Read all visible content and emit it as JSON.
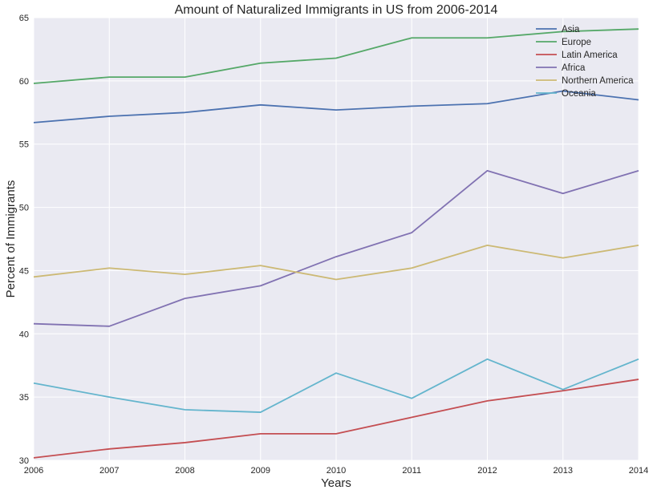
{
  "chart_data": {
    "type": "line",
    "title": "Amount of Naturalized Immigrants in US from 2006-2014",
    "xlabel": "Years",
    "ylabel": "Percent of Immigrants",
    "x": [
      2006,
      2007,
      2008,
      2009,
      2010,
      2011,
      2012,
      2013,
      2014
    ],
    "x_tick_labels": [
      "2006",
      "2007",
      "2008",
      "2009",
      "2010",
      "2011",
      "2012",
      "2013",
      "2014"
    ],
    "xlim": [
      2006,
      2014
    ],
    "ylim": [
      30,
      65
    ],
    "y_ticks": [
      30,
      35,
      40,
      45,
      50,
      55,
      60,
      65
    ],
    "y_tick_labels": [
      "30",
      "35",
      "40",
      "45",
      "50",
      "55",
      "60",
      "65"
    ],
    "grid": true,
    "legend_position": "top-right",
    "plot_background": "#EAEAF2",
    "grid_color": "#FFFFFF",
    "series": [
      {
        "name": "Asia",
        "color": "#4C72B0",
        "values": [
          56.7,
          57.2,
          57.5,
          58.1,
          57.7,
          58.0,
          58.2,
          59.2,
          58.5
        ]
      },
      {
        "name": "Europe",
        "color": "#55A868",
        "values": [
          59.8,
          60.3,
          60.3,
          61.4,
          61.8,
          63.4,
          63.4,
          63.9,
          64.1
        ]
      },
      {
        "name": "Latin America",
        "color": "#C44E52",
        "values": [
          30.2,
          30.9,
          31.4,
          32.1,
          32.1,
          33.4,
          34.7,
          35.5,
          36.4
        ]
      },
      {
        "name": "Africa",
        "color": "#8172B2",
        "values": [
          40.8,
          40.6,
          42.8,
          43.8,
          46.1,
          48.0,
          52.9,
          51.1,
          52.9
        ]
      },
      {
        "name": "Northern America",
        "color": "#CCB974",
        "values": [
          44.5,
          45.2,
          44.7,
          45.4,
          44.3,
          45.2,
          47.0,
          46.0,
          47.0
        ]
      },
      {
        "name": "Oceania",
        "color": "#64B5CD",
        "values": [
          36.1,
          35.0,
          34.0,
          33.8,
          36.9,
          34.9,
          38.0,
          35.6,
          38.0
        ]
      }
    ]
  }
}
